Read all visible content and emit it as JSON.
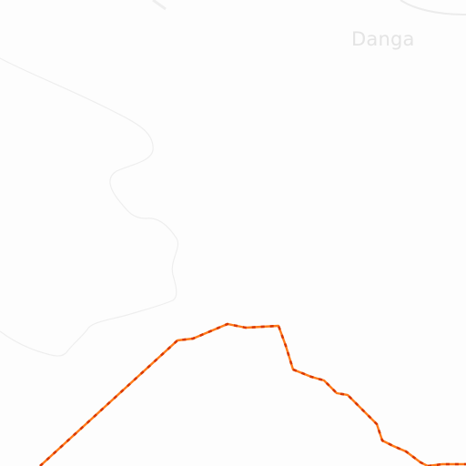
{
  "map": {
    "place_label": "Danga",
    "colors": {
      "background": "#fdfdfd",
      "terrain_contour": "#ededed",
      "boundary_line": "#ff6a00",
      "boundary_dash": "#d83a00",
      "place_label": "#e4e4e4"
    }
  }
}
